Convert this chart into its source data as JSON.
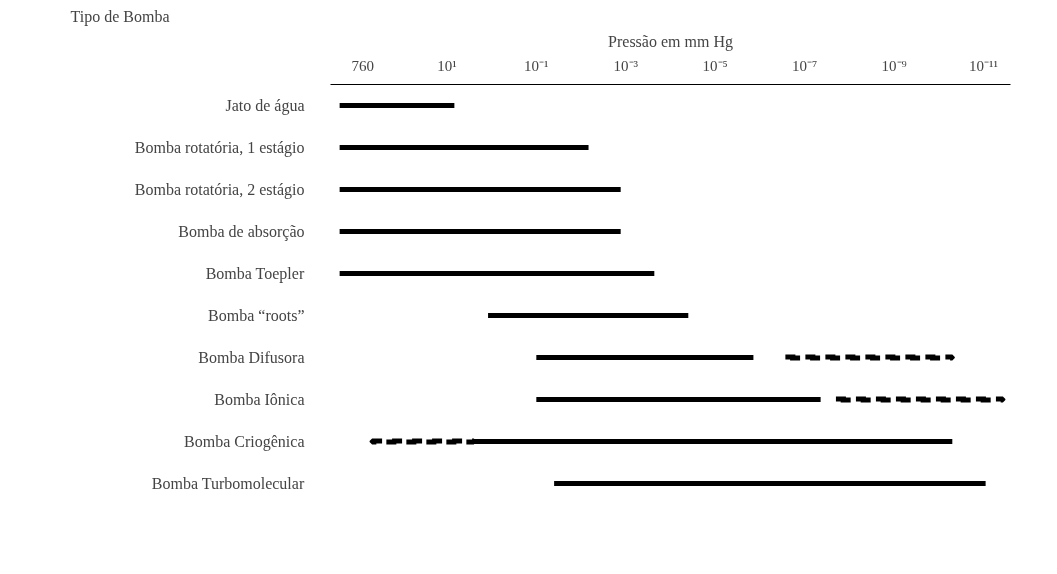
{
  "chart_data": {
    "type": "bar",
    "orientation": "horizontal",
    "log": "x",
    "ylabel": "Tipo de Bomba",
    "xlabel": "Pressão em mm Hg",
    "categories": [
      "Jato de água",
      "Bomba rotatória, 1 estágio",
      "Bomba rotatória, 2 estágio",
      "Bomba de absorção",
      "Bomba Toepler",
      "Bomba “roots”",
      "Bomba Difusora",
      "Bomba Iônica",
      "Bomba Criogênica",
      "Bomba Turbomolecular"
    ],
    "xlim": [
      4000,
      2.5e-12
    ],
    "xticks": [
      760,
      {
        "value": 10,
        "label": "10¹"
      },
      {
        "value": 0.1,
        "label": "10⁻¹"
      },
      {
        "value": 0.001,
        "label": "10⁻³"
      },
      {
        "value": 1e-05,
        "label": "10⁻⁵"
      },
      {
        "value": 1e-07,
        "label": "10⁻⁷"
      },
      {
        "value": 1e-09,
        "label": "10⁻⁹"
      },
      {
        "value": 1e-11,
        "label": "10⁻¹¹"
      }
    ],
    "grid": false,
    "series": [
      {
        "color": "#000000",
        "line_style": "solid",
        "base": [
          2500,
          2500,
          2500,
          2500,
          2500,
          1.2,
          0.1,
          0.1,
          2.5,
          0.04
        ],
        "values": [
          -2493.2,
          -2499.9932,
          -2499.9987,
          -2499.9987,
          -2499.99977,
          -1.19996,
          -0.0999986,
          -0.099999956,
          -2.49999999995,
          -0.039999999991
        ]
      },
      {
        "color": "#000000",
        "line_style": "dashed",
        "base": [
          null,
          null,
          null,
          null,
          null,
          null,
          2.7e-07,
          2e-08,
          470,
          null
        ],
        "values": [
          null,
          null,
          null,
          null,
          null,
          null,
          -2.6995e-07,
          -1.99963e-08,
          -467.5,
          null
        ]
      }
    ]
  }
}
